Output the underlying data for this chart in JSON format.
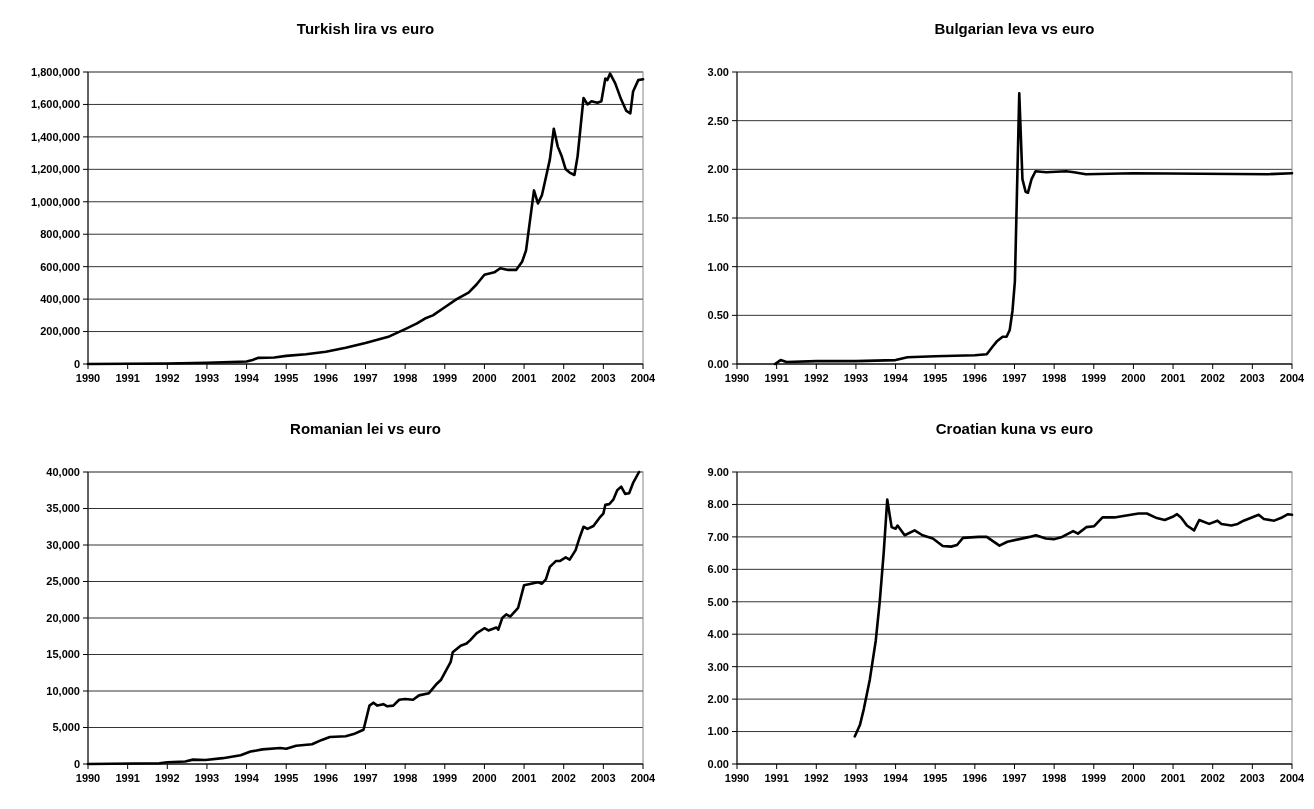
{
  "chart_data": [
    {
      "type": "line",
      "title": "Turkish lira vs euro",
      "xlim": [
        1990,
        2004
      ],
      "xticks": [
        1990,
        1991,
        1992,
        1993,
        1994,
        1995,
        1996,
        1997,
        1998,
        1999,
        2000,
        2001,
        2002,
        2003,
        2004
      ],
      "ylim": [
        0,
        1800000
      ],
      "yticks": [
        0,
        {
          "value": 200000,
          "label": "200,000"
        },
        {
          "value": 400000,
          "label": "400,000"
        },
        {
          "value": 600000,
          "label": "600,000"
        },
        {
          "value": 800000,
          "label": "800,000"
        },
        {
          "value": 1000000,
          "label": "1,000,000"
        },
        {
          "value": 1200000,
          "label": "1,200,000"
        },
        {
          "value": 1400000,
          "label": "1,400,000"
        },
        {
          "value": 1600000,
          "label": "1,600,000"
        },
        {
          "value": 1800000,
          "label": "1,800,000"
        }
      ],
      "grid": "y",
      "series": [
        {
          "color": "#000000",
          "x": [
            1990,
            1992,
            1993,
            1994,
            1994.15,
            1994.3,
            1994.7,
            1995,
            1995.5,
            1996,
            1996.5,
            1997,
            1997.6,
            1998,
            1998.3,
            1998.5,
            1998.7,
            1999,
            1999.3,
            1999.6,
            1999.8,
            2000,
            2000.25,
            2000.4,
            2000.6,
            2000.8,
            2000.95,
            2001.05,
            2001.25,
            2001.35,
            2001.45,
            2001.55,
            2001.65,
            2001.75,
            2001.85,
            2001.95,
            2002.05,
            2002.15,
            2002.27,
            2002.35,
            2002.5,
            2002.6,
            2002.7,
            2002.85,
            2002.95,
            2003.05,
            2003.1,
            2003.17,
            2003.3,
            2003.45,
            2003.58,
            2003.68,
            2003.75,
            2003.88,
            2004
          ],
          "values": [
            0,
            3000,
            8000,
            15000,
            25000,
            38000,
            40000,
            50000,
            60000,
            75000,
            100000,
            130000,
            170000,
            215000,
            250000,
            280000,
            300000,
            350000,
            400000,
            440000,
            490000,
            550000,
            565000,
            590000,
            580000,
            580000,
            630000,
            700000,
            1070000,
            990000,
            1040000,
            1150000,
            1260000,
            1450000,
            1340000,
            1280000,
            1200000,
            1180000,
            1165000,
            1280000,
            1640000,
            1600000,
            1620000,
            1610000,
            1620000,
            1760000,
            1750000,
            1790000,
            1730000,
            1630000,
            1560000,
            1545000,
            1680000,
            1750000,
            1755000
          ]
        }
      ]
    },
    {
      "type": "line",
      "title": "Bulgarian leva vs euro",
      "xlim": [
        1990,
        2004
      ],
      "xticks": [
        1990,
        1991,
        1992,
        1993,
        1994,
        1995,
        1996,
        1997,
        1998,
        1999,
        2000,
        2001,
        2002,
        2003,
        2004
      ],
      "ylim": [
        0,
        3
      ],
      "yticks": [
        {
          "value": 0,
          "label": "0.00"
        },
        {
          "value": 0.5,
          "label": "0.50"
        },
        {
          "value": 1,
          "label": "1.00"
        },
        {
          "value": 1.5,
          "label": "1.50"
        },
        {
          "value": 2,
          "label": "2.00"
        },
        {
          "value": 2.5,
          "label": "2.50"
        },
        {
          "value": 3,
          "label": "3.00"
        }
      ],
      "grid": "y",
      "series": [
        {
          "color": "#000000",
          "x": [
            1990.96,
            1991.1,
            1991.25,
            1992,
            1993,
            1994,
            1994.3,
            1995,
            1996,
            1996.3,
            1996.45,
            1996.55,
            1996.7,
            1996.8,
            1996.88,
            1996.95,
            1997.01,
            1997.12,
            1997.2,
            1997.28,
            1997.34,
            1997.43,
            1997.53,
            1997.8,
            1998.3,
            1998.5,
            1998.8,
            2000,
            2003.4,
            2004
          ],
          "values": [
            0,
            0.04,
            0.02,
            0.03,
            0.03,
            0.04,
            0.07,
            0.08,
            0.09,
            0.1,
            0.18,
            0.23,
            0.28,
            0.28,
            0.35,
            0.55,
            0.85,
            2.78,
            1.9,
            1.77,
            1.76,
            1.9,
            1.98,
            1.97,
            1.98,
            1.97,
            1.95,
            1.96,
            1.95,
            1.96
          ]
        }
      ]
    },
    {
      "type": "line",
      "title": "Romanian lei vs euro",
      "xlim": [
        1990,
        2004
      ],
      "xticks": [
        1990,
        1991,
        1992,
        1993,
        1994,
        1995,
        1996,
        1997,
        1998,
        1999,
        2000,
        2001,
        2002,
        2003,
        2004
      ],
      "ylim": [
        0,
        40000
      ],
      "yticks": [
        0,
        {
          "value": 5000,
          "label": "5,000"
        },
        {
          "value": 10000,
          "label": "10,000"
        },
        {
          "value": 15000,
          "label": "15,000"
        },
        {
          "value": 20000,
          "label": "20,000"
        },
        {
          "value": 25000,
          "label": "25,000"
        },
        {
          "value": 30000,
          "label": "30,000"
        },
        {
          "value": 35000,
          "label": "35,000"
        },
        {
          "value": 40000,
          "label": "40,000"
        }
      ],
      "grid": "y",
      "series": [
        {
          "color": "#000000",
          "x": [
            1990,
            1991.8,
            1992,
            1992.45,
            1992.65,
            1992.96,
            1993.4,
            1993.85,
            1994.1,
            1994.4,
            1994.85,
            1995,
            1995.25,
            1995.65,
            1995.9,
            1996.1,
            1996.5,
            1996.7,
            1996.95,
            1997.1,
            1997.2,
            1997.3,
            1997.45,
            1997.55,
            1997.7,
            1997.85,
            1998,
            1998.2,
            1998.35,
            1998.6,
            1998.8,
            1998.9,
            1999.05,
            1999.15,
            1999.2,
            1999.4,
            1999.55,
            1999.65,
            1999.8,
            2000,
            2000.1,
            2000.3,
            2000.35,
            2000.45,
            2000.55,
            2000.65,
            2000.85,
            2001,
            2001.35,
            2001.45,
            2001.55,
            2001.65,
            2001.8,
            2001.9,
            2002.05,
            2002.15,
            2002.3,
            2002.4,
            2002.5,
            2002.6,
            2002.75,
            2002.9,
            2003,
            2003.05,
            2003.15,
            2003.25,
            2003.35,
            2003.45,
            2003.55,
            2003.65,
            2003.75,
            2003.9
          ],
          "values": [
            0,
            100,
            250,
            350,
            600,
            550,
            800,
            1200,
            1700,
            2000,
            2200,
            2100,
            2500,
            2700,
            3300,
            3700,
            3800,
            4100,
            4700,
            8000,
            8400,
            8000,
            8200,
            7900,
            8000,
            8800,
            8900,
            8800,
            9400,
            9700,
            11000,
            11500,
            13000,
            14000,
            15300,
            16200,
            16500,
            17000,
            17900,
            18600,
            18300,
            18700,
            18400,
            20000,
            20500,
            20200,
            21400,
            24500,
            24900,
            24700,
            25300,
            27000,
            27800,
            27800,
            28300,
            28000,
            29300,
            31000,
            32500,
            32200,
            32600,
            33700,
            34300,
            35500,
            35600,
            36200,
            37500,
            38000,
            37000,
            37100,
            38500,
            40000
          ]
        }
      ]
    },
    {
      "type": "line",
      "title": "Croatian kuna vs euro",
      "xlim": [
        1990,
        2004
      ],
      "xticks": [
        1990,
        1991,
        1992,
        1993,
        1994,
        1995,
        1996,
        1997,
        1998,
        1999,
        2000,
        2001,
        2002,
        2003,
        2004
      ],
      "ylim": [
        0,
        9
      ],
      "yticks": [
        {
          "value": 0,
          "label": "0.00"
        },
        {
          "value": 1,
          "label": "1.00"
        },
        {
          "value": 2,
          "label": "2.00"
        },
        {
          "value": 3,
          "label": "3.00"
        },
        {
          "value": 4,
          "label": "4.00"
        },
        {
          "value": 5,
          "label": "5.00"
        },
        {
          "value": 6,
          "label": "6.00"
        },
        {
          "value": 7,
          "label": "7.00"
        },
        {
          "value": 8,
          "label": "8.00"
        },
        {
          "value": 9,
          "label": "9.00"
        }
      ],
      "grid": "y",
      "series": [
        {
          "color": "#000000",
          "x": [
            1992.97,
            1993.1,
            1993.2,
            1993.35,
            1993.5,
            1993.6,
            1993.7,
            1993.79,
            1993.9,
            1994,
            1994.05,
            1994.23,
            1994.48,
            1994.68,
            1994.94,
            1995.19,
            1995.4,
            1995.55,
            1995.7,
            1996.1,
            1996.3,
            1996.62,
            1996.82,
            1997.38,
            1997.54,
            1997.79,
            1997.99,
            1998.2,
            1998.48,
            1998.6,
            1998.81,
            1999.01,
            1999.22,
            1999.52,
            1999.67,
            2000.13,
            2000.34,
            2000.59,
            2000.79,
            2000.99,
            2001.1,
            2001.2,
            2001.35,
            2001.53,
            2001.66,
            2001.91,
            2002.12,
            2002.22,
            2002.47,
            2002.63,
            2002.78,
            2003.16,
            2003.29,
            2003.55,
            2003.75,
            2003.9,
            2004
          ],
          "values": [
            0.85,
            1.2,
            1.7,
            2.6,
            3.8,
            5.0,
            6.5,
            8.15,
            7.3,
            7.25,
            7.35,
            7.05,
            7.2,
            7.05,
            6.95,
            6.72,
            6.7,
            6.75,
            6.97,
            7.0,
            7.0,
            6.73,
            6.85,
            7.0,
            7.05,
            6.95,
            6.93,
            7.0,
            7.18,
            7.1,
            7.3,
            7.33,
            7.6,
            7.6,
            7.63,
            7.72,
            7.72,
            7.58,
            7.52,
            7.62,
            7.7,
            7.6,
            7.35,
            7.2,
            7.52,
            7.4,
            7.5,
            7.4,
            7.35,
            7.4,
            7.5,
            7.68,
            7.55,
            7.5,
            7.6,
            7.7,
            7.68
          ]
        }
      ]
    }
  ]
}
